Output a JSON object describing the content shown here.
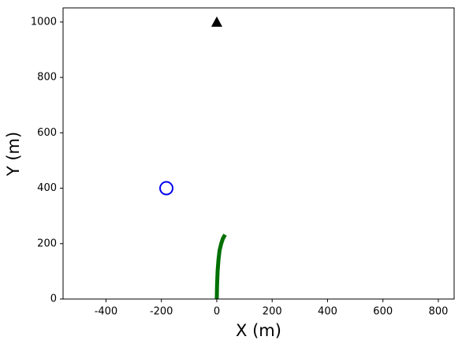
{
  "chart_data": {
    "type": "line",
    "xlabel": "X (m)",
    "ylabel": "Y (m)",
    "xlim": [
      -555,
      857
    ],
    "ylim": [
      0,
      1051
    ],
    "xticks": [
      -400,
      -200,
      0,
      200,
      400,
      600,
      800
    ],
    "yticks": [
      0,
      200,
      400,
      600,
      800,
      1000
    ],
    "grid": false,
    "path": {
      "color": "#007000",
      "x": [
        0,
        1,
        3,
        6,
        10,
        16,
        22,
        30
      ],
      "y": [
        0,
        50,
        100,
        140,
        175,
        200,
        218,
        232
      ]
    },
    "circle": {
      "color": "#0000ee",
      "x": -182,
      "y": 400
    },
    "triangle": {
      "color": "#000000",
      "x": 0,
      "y": 1000
    }
  }
}
